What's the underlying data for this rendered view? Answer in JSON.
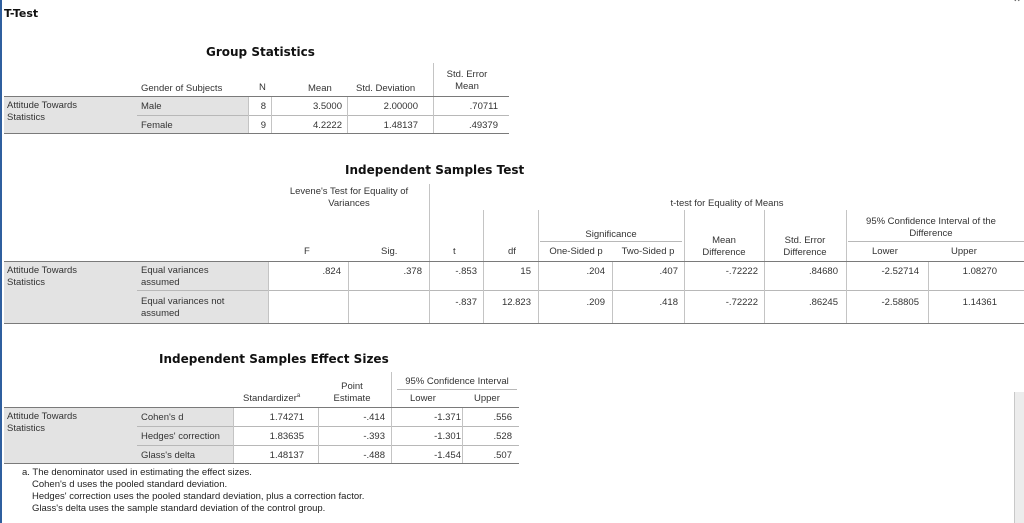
{
  "title": "T-Test",
  "group_stats": {
    "title": "Group Statistics",
    "headers": {
      "gender": "Gender of Subjects",
      "n": "N",
      "mean": "Mean",
      "sd": "Std. Deviation",
      "sem_1": "Std. Error",
      "sem_2": "Mean"
    },
    "variable": [
      "Attitude Towards",
      "Statistics"
    ],
    "rows": [
      {
        "label": "Male",
        "n": "8",
        "mean": "3.5000",
        "sd": "2.00000",
        "sem": ".70711"
      },
      {
        "label": "Female",
        "n": "9",
        "mean": "4.2222",
        "sd": "1.48137",
        "sem": ".49379"
      }
    ]
  },
  "ind_test": {
    "title": "Independent Samples Test",
    "levene_header": [
      "Levene's Test for Equality of",
      "Variances"
    ],
    "ttest_header": "t-test for Equality of Means",
    "sig_header": "Significance",
    "ci_header": [
      "95% Confidence Interval of the",
      "Difference"
    ],
    "headers": {
      "f": "F",
      "sig": "Sig.",
      "t": "t",
      "df": "df",
      "one_sided": "One-Sided p",
      "two_sided": "Two-Sided p",
      "mean_diff_1": "Mean",
      "mean_diff_2": "Difference",
      "se_diff_1": "Std. Error",
      "se_diff_2": "Difference",
      "lower": "Lower",
      "upper": "Upper"
    },
    "variable": [
      "Attitude Towards",
      "Statistics"
    ],
    "rows": [
      {
        "label": [
          "Equal variances",
          "assumed"
        ],
        "f": ".824",
        "sig": ".378",
        "t": "-.853",
        "df": "15",
        "one_sided": ".204",
        "two_sided": ".407",
        "mean_diff": "-.72222",
        "se_diff": ".84680",
        "lower": "-2.52714",
        "upper": "1.08270"
      },
      {
        "label": [
          "Equal variances not",
          "assumed"
        ],
        "f": "",
        "sig": "",
        "t": "-.837",
        "df": "12.823",
        "one_sided": ".209",
        "two_sided": ".418",
        "mean_diff": "-.72222",
        "se_diff": ".86245",
        "lower": "-2.58805",
        "upper": "1.14361"
      }
    ]
  },
  "effect": {
    "title": "Independent Samples Effect Sizes",
    "headers": {
      "standardizer": "Standardizer",
      "standardizer_sup": "a",
      "point_1": "Point",
      "point_2": "Estimate",
      "ci": "95% Confidence Interval",
      "lower": "Lower",
      "upper": "Upper"
    },
    "variable": [
      "Attitude Towards",
      "Statistics"
    ],
    "rows": [
      {
        "label": "Cohen's d",
        "standardizer": "1.74271",
        "point": "-.414",
        "lower": "-1.371",
        "upper": ".556"
      },
      {
        "label": "Hedges' correction",
        "standardizer": "1.83635",
        "point": "-.393",
        "lower": "-1.301",
        "upper": ".528"
      },
      {
        "label": "Glass's delta",
        "standardizer": "1.48137",
        "point": "-.488",
        "lower": "-1.454",
        "upper": ".507"
      }
    ],
    "notes": [
      "a. The denominator used in estimating the effect sizes.",
      "Cohen's d uses the pooled standard deviation.",
      "Hedges' correction uses the pooled standard deviation, plus a correction factor.",
      "Glass's delta uses the sample standard deviation of the control group."
    ]
  }
}
